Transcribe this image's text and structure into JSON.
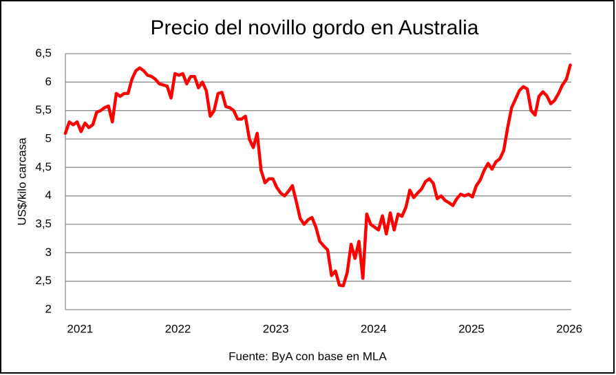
{
  "chart_data": {
    "type": "line",
    "title": "Precio del novillo gordo en Australia",
    "y_label": "US$/kilo carcasa",
    "source": "Fuente: ByA con base en MLA",
    "xlim": [
      2020.85,
      2026.02
    ],
    "xticks": [
      2021,
      2022,
      2023,
      2024,
      2025,
      2026
    ],
    "ylim": [
      2,
      6.5
    ],
    "yticks": [
      2,
      {
        "value": 2.5,
        "label": "2,5"
      },
      3,
      {
        "value": 3.5,
        "label": "3,5"
      },
      4,
      {
        "value": 4.5,
        "label": "4,5"
      },
      5,
      {
        "value": 5.5,
        "label": "5,5"
      },
      6,
      {
        "value": 6.5,
        "label": "6,5"
      }
    ],
    "grid": true,
    "x": [
      2020.85,
      2020.89,
      2020.93,
      2020.97,
      2021.01,
      2021.05,
      2021.09,
      2021.13,
      2021.17,
      2021.21,
      2021.25,
      2021.29,
      2021.33,
      2021.37,
      2021.41,
      2021.45,
      2021.49,
      2021.53,
      2021.57,
      2021.61,
      2021.65,
      2021.69,
      2021.73,
      2021.77,
      2021.81,
      2021.85,
      2021.89,
      2021.93,
      2021.97,
      2022.01,
      2022.05,
      2022.09,
      2022.13,
      2022.17,
      2022.21,
      2022.25,
      2022.29,
      2022.33,
      2022.37,
      2022.41,
      2022.45,
      2022.49,
      2022.53,
      2022.57,
      2022.61,
      2022.65,
      2022.69,
      2022.73,
      2022.77,
      2022.81,
      2022.85,
      2022.89,
      2022.93,
      2022.97,
      2023.01,
      2023.05,
      2023.09,
      2023.13,
      2023.17,
      2023.21,
      2023.25,
      2023.29,
      2023.33,
      2023.37,
      2023.41,
      2023.45,
      2023.49,
      2023.53,
      2023.57,
      2023.61,
      2023.65,
      2023.69,
      2023.73,
      2023.77,
      2023.81,
      2023.85,
      2023.89,
      2023.93,
      2023.97,
      2024.01,
      2024.05,
      2024.09,
      2024.13,
      2024.17,
      2024.21,
      2024.25,
      2024.29,
      2024.33,
      2024.37,
      2024.41,
      2024.45,
      2024.49,
      2024.53,
      2024.57,
      2024.61,
      2024.65,
      2024.69,
      2024.73,
      2024.77,
      2024.81,
      2024.85,
      2024.89,
      2024.93,
      2024.97,
      2025.01,
      2025.05,
      2025.09,
      2025.13,
      2025.17,
      2025.21,
      2025.25,
      2025.29,
      2025.33,
      2025.37,
      2025.41,
      2025.45,
      2025.49,
      2025.53,
      2025.57,
      2025.61,
      2025.65,
      2025.69,
      2025.73,
      2025.77,
      2025.81,
      2025.85,
      2025.89,
      2025.93,
      2025.97,
      2026.01
    ],
    "series": [
      {
        "color": "#ff0000",
        "values": [
          5.1,
          5.3,
          5.25,
          5.3,
          5.13,
          5.28,
          5.2,
          5.25,
          5.47,
          5.5,
          5.55,
          5.58,
          5.3,
          5.8,
          5.75,
          5.8,
          5.8,
          6.05,
          6.2,
          6.25,
          6.2,
          6.12,
          6.1,
          6.05,
          5.97,
          5.95,
          5.93,
          5.72,
          6.15,
          6.12,
          6.15,
          5.97,
          6.1,
          6.1,
          5.9,
          6.0,
          5.85,
          5.4,
          5.5,
          5.8,
          5.82,
          5.57,
          5.55,
          5.5,
          5.35,
          5.35,
          5.4,
          5.0,
          4.85,
          5.1,
          4.45,
          4.23,
          4.3,
          4.3,
          4.15,
          4.05,
          4.0,
          4.08,
          4.18,
          3.9,
          3.6,
          3.5,
          3.58,
          3.62,
          3.45,
          3.2,
          3.12,
          3.05,
          2.6,
          2.68,
          2.43,
          2.42,
          2.65,
          3.15,
          2.9,
          3.2,
          2.55,
          3.68,
          3.5,
          3.45,
          3.4,
          3.65,
          3.33,
          3.7,
          3.4,
          3.68,
          3.64,
          3.8,
          4.1,
          3.97,
          4.05,
          4.12,
          4.25,
          4.3,
          4.22,
          3.95,
          4.0,
          3.92,
          3.88,
          3.83,
          3.95,
          4.03,
          4.0,
          4.03,
          3.98,
          4.18,
          4.28,
          4.45,
          4.57,
          4.47,
          4.6,
          4.65,
          4.8,
          5.2,
          5.55,
          5.7,
          5.85,
          5.92,
          5.88,
          5.5,
          5.42,
          5.75,
          5.83,
          5.76,
          5.62,
          5.68,
          5.8,
          5.95,
          6.05,
          6.3
        ]
      }
    ]
  }
}
